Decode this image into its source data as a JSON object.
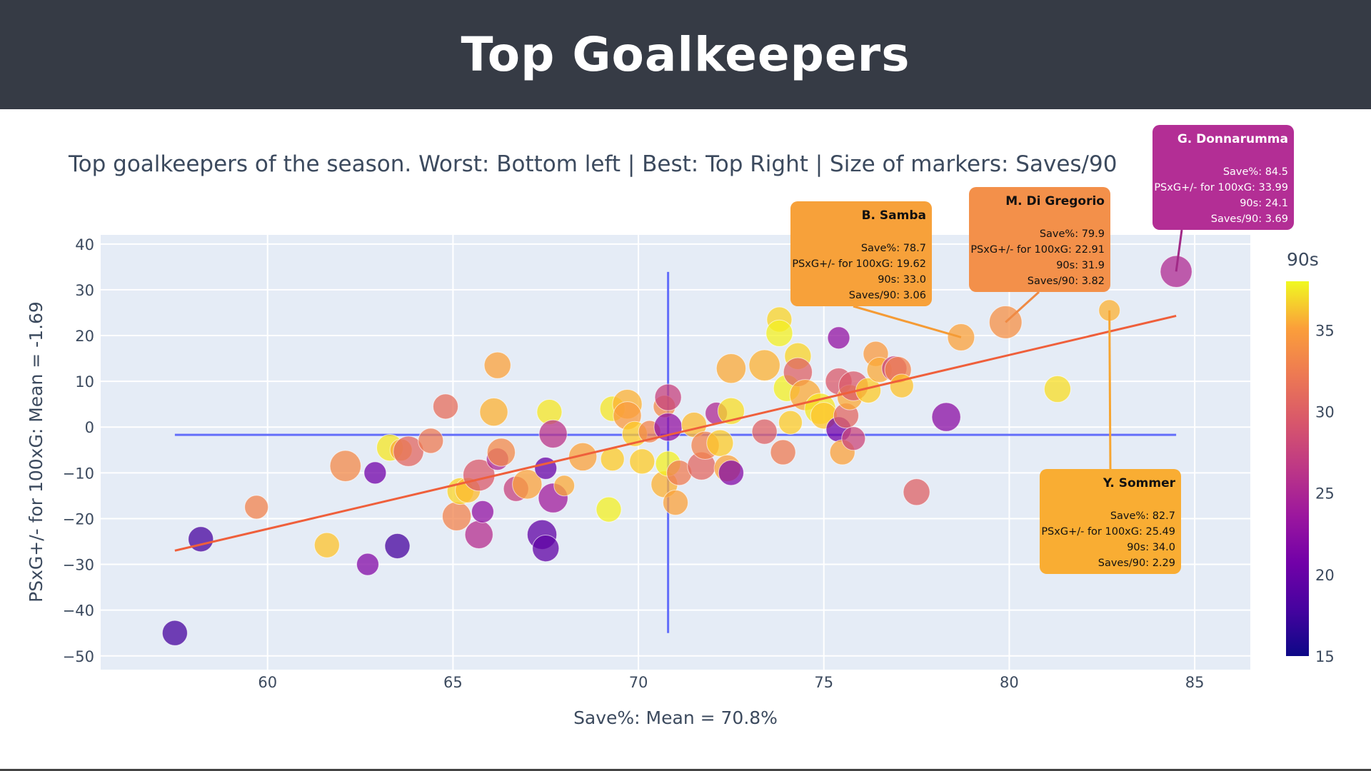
{
  "header": {
    "title": "Top Goalkeepers"
  },
  "chart_data": {
    "type": "scatter",
    "subtitle": "Top goalkeepers of the season. Worst: Bottom left | Best: Top Right | Size of markers: Saves/90",
    "xlabel": "Save%: Mean = 70.8%",
    "ylabel": "PSxG+/- for 100xG: Mean = -1.69",
    "xlim": [
      55.5,
      86.5
    ],
    "ylim": [
      -53,
      42
    ],
    "xticks": [
      60,
      65,
      70,
      75,
      80,
      85
    ],
    "yticks": [
      40,
      30,
      20,
      10,
      0,
      -10,
      -20,
      -30,
      -40,
      -50
    ],
    "mean_x": 70.8,
    "mean_y": -1.69,
    "trendline": {
      "x": [
        57.5,
        84.5
      ],
      "y": [
        -27,
        24.3
      ],
      "color": "#ef5f3b"
    },
    "mean_line_color": "#636efa",
    "grid": true,
    "colorbar": {
      "title": "90s",
      "min": 15,
      "max": 38,
      "ticks": [
        15,
        20,
        25,
        30,
        35
      ]
    },
    "points": [
      {
        "x": 84.5,
        "y": 33.99,
        "n90": 24.1,
        "s90": 3.69
      },
      {
        "x": 79.9,
        "y": 22.91,
        "n90": 31.9,
        "s90": 3.82
      },
      {
        "x": 78.7,
        "y": 19.62,
        "n90": 33.0,
        "s90": 3.06
      },
      {
        "x": 82.7,
        "y": 25.49,
        "n90": 34.0,
        "s90": 2.29
      },
      {
        "x": 81.3,
        "y": 8.3,
        "n90": 36.5,
        "s90": 3.0
      },
      {
        "x": 78.3,
        "y": 2.2,
        "n90": 21.5,
        "s90": 3.3
      },
      {
        "x": 77.5,
        "y": -14.2,
        "n90": 28.5,
        "s90": 3.0
      },
      {
        "x": 57.5,
        "y": -45.0,
        "n90": 17.5,
        "s90": 2.8
      },
      {
        "x": 58.2,
        "y": -24.5,
        "n90": 17.5,
        "s90": 2.8
      },
      {
        "x": 59.7,
        "y": -17.5,
        "n90": 31.0,
        "s90": 2.6
      },
      {
        "x": 61.6,
        "y": -25.8,
        "n90": 35.0,
        "s90": 2.8
      },
      {
        "x": 62.1,
        "y": -8.5,
        "n90": 31.5,
        "s90": 3.6
      },
      {
        "x": 62.7,
        "y": -30.0,
        "n90": 21.0,
        "s90": 2.4
      },
      {
        "x": 62.9,
        "y": -10.0,
        "n90": 20.0,
        "s90": 2.4
      },
      {
        "x": 63.5,
        "y": -26.0,
        "n90": 17.5,
        "s90": 2.8
      },
      {
        "x": 63.3,
        "y": -4.5,
        "n90": 37.0,
        "s90": 3.0
      },
      {
        "x": 63.6,
        "y": -5.0,
        "n90": 33.5,
        "s90": 2.4
      },
      {
        "x": 63.8,
        "y": -5.3,
        "n90": 29.0,
        "s90": 3.5
      },
      {
        "x": 64.4,
        "y": -3.0,
        "n90": 30.5,
        "s90": 2.8
      },
      {
        "x": 64.8,
        "y": 4.5,
        "n90": 29.5,
        "s90": 2.8
      },
      {
        "x": 65.1,
        "y": -19.5,
        "n90": 31.0,
        "s90": 3.3
      },
      {
        "x": 65.2,
        "y": -14.0,
        "n90": 36.0,
        "s90": 3.0
      },
      {
        "x": 65.4,
        "y": -13.8,
        "n90": 34.5,
        "s90": 2.8
      },
      {
        "x": 65.7,
        "y": -10.5,
        "n90": 28.0,
        "s90": 3.7
      },
      {
        "x": 65.7,
        "y": -23.5,
        "n90": 24.5,
        "s90": 3.2
      },
      {
        "x": 65.8,
        "y": -18.5,
        "n90": 22.0,
        "s90": 2.4
      },
      {
        "x": 66.1,
        "y": 3.3,
        "n90": 34.0,
        "s90": 3.2
      },
      {
        "x": 66.2,
        "y": 13.5,
        "n90": 33.0,
        "s90": 3.0
      },
      {
        "x": 66.2,
        "y": -7.0,
        "n90": 24.0,
        "s90": 2.4
      },
      {
        "x": 66.3,
        "y": -5.5,
        "n90": 31.5,
        "s90": 3.2
      },
      {
        "x": 66.7,
        "y": -13.5,
        "n90": 26.0,
        "s90": 2.8
      },
      {
        "x": 67.0,
        "y": -12.5,
        "n90": 33.0,
        "s90": 3.4
      },
      {
        "x": 67.4,
        "y": -23.5,
        "n90": 19.0,
        "s90": 3.4
      },
      {
        "x": 67.5,
        "y": -26.5,
        "n90": 19.0,
        "s90": 3.0
      },
      {
        "x": 67.5,
        "y": -9.0,
        "n90": 19.5,
        "s90": 2.4
      },
      {
        "x": 67.6,
        "y": 3.3,
        "n90": 37.0,
        "s90": 2.8
      },
      {
        "x": 67.7,
        "y": -1.5,
        "n90": 25.0,
        "s90": 3.2
      },
      {
        "x": 67.7,
        "y": -15.5,
        "n90": 23.0,
        "s90": 3.4
      },
      {
        "x": 68.0,
        "y": -12.8,
        "n90": 33.5,
        "s90": 2.2
      },
      {
        "x": 68.5,
        "y": -6.5,
        "n90": 33.0,
        "s90": 3.2
      },
      {
        "x": 69.2,
        "y": -18.0,
        "n90": 37.5,
        "s90": 2.8
      },
      {
        "x": 69.3,
        "y": -7.0,
        "n90": 35.5,
        "s90": 2.6
      },
      {
        "x": 69.3,
        "y": 4.0,
        "n90": 37.0,
        "s90": 2.8
      },
      {
        "x": 69.7,
        "y": 5.0,
        "n90": 34.0,
        "s90": 3.4
      },
      {
        "x": 69.7,
        "y": 2.5,
        "n90": 32.5,
        "s90": 3.2
      },
      {
        "x": 69.9,
        "y": -1.5,
        "n90": 35.5,
        "s90": 2.8
      },
      {
        "x": 70.1,
        "y": -7.5,
        "n90": 35.5,
        "s90": 2.8
      },
      {
        "x": 70.3,
        "y": -1.0,
        "n90": 31.0,
        "s90": 2.4
      },
      {
        "x": 70.7,
        "y": -12.5,
        "n90": 34.0,
        "s90": 3.0
      },
      {
        "x": 70.7,
        "y": 4.5,
        "n90": 31.5,
        "s90": 2.4
      },
      {
        "x": 70.8,
        "y": 6.5,
        "n90": 26.0,
        "s90": 3.0
      },
      {
        "x": 70.8,
        "y": 0.0,
        "n90": 22.0,
        "s90": 3.2
      },
      {
        "x": 70.8,
        "y": -8.0,
        "n90": 37.5,
        "s90": 2.8
      },
      {
        "x": 71.0,
        "y": -16.5,
        "n90": 33.0,
        "s90": 2.8
      },
      {
        "x": 71.1,
        "y": -10.0,
        "n90": 30.5,
        "s90": 2.8
      },
      {
        "x": 71.5,
        "y": 0.5,
        "n90": 34.5,
        "s90": 2.8
      },
      {
        "x": 71.7,
        "y": -8.5,
        "n90": 29.0,
        "s90": 3.2
      },
      {
        "x": 71.8,
        "y": -4.0,
        "n90": 31.0,
        "s90": 3.2
      },
      {
        "x": 72.1,
        "y": 3.0,
        "n90": 24.0,
        "s90": 2.4
      },
      {
        "x": 72.2,
        "y": -3.5,
        "n90": 35.5,
        "s90": 3.0
      },
      {
        "x": 72.4,
        "y": -9.0,
        "n90": 33.0,
        "s90": 3.0
      },
      {
        "x": 72.5,
        "y": -10.0,
        "n90": 21.0,
        "s90": 2.8
      },
      {
        "x": 72.5,
        "y": 3.5,
        "n90": 36.5,
        "s90": 3.0
      },
      {
        "x": 72.5,
        "y": 12.8,
        "n90": 33.5,
        "s90": 3.4
      },
      {
        "x": 73.4,
        "y": 13.5,
        "n90": 34.0,
        "s90": 3.6
      },
      {
        "x": 73.4,
        "y": -1.0,
        "n90": 28.5,
        "s90": 2.8
      },
      {
        "x": 73.8,
        "y": 23.5,
        "n90": 36.0,
        "s90": 2.8
      },
      {
        "x": 73.8,
        "y": 20.5,
        "n90": 37.5,
        "s90": 3.0
      },
      {
        "x": 73.9,
        "y": -5.5,
        "n90": 30.5,
        "s90": 2.8
      },
      {
        "x": 74.0,
        "y": 8.5,
        "n90": 37.5,
        "s90": 3.0
      },
      {
        "x": 74.1,
        "y": 1.0,
        "n90": 35.5,
        "s90": 2.6
      },
      {
        "x": 74.3,
        "y": 15.5,
        "n90": 36.0,
        "s90": 3.0
      },
      {
        "x": 74.3,
        "y": 12.0,
        "n90": 28.5,
        "s90": 3.3
      },
      {
        "x": 74.5,
        "y": 7.0,
        "n90": 33.5,
        "s90": 3.6
      },
      {
        "x": 74.9,
        "y": 4.0,
        "n90": 37.0,
        "s90": 3.6
      },
      {
        "x": 75.0,
        "y": 2.5,
        "n90": 35.0,
        "s90": 3.0
      },
      {
        "x": 75.4,
        "y": 19.5,
        "n90": 22.0,
        "s90": 2.4
      },
      {
        "x": 75.4,
        "y": 10.0,
        "n90": 28.0,
        "s90": 3.0
      },
      {
        "x": 75.4,
        "y": -0.5,
        "n90": 20.0,
        "s90": 2.8
      },
      {
        "x": 75.5,
        "y": -5.5,
        "n90": 33.0,
        "s90": 2.8
      },
      {
        "x": 75.6,
        "y": 2.5,
        "n90": 29.0,
        "s90": 2.8
      },
      {
        "x": 75.7,
        "y": 6.5,
        "n90": 33.5,
        "s90": 2.8
      },
      {
        "x": 75.8,
        "y": 9.0,
        "n90": 28.0,
        "s90": 3.4
      },
      {
        "x": 75.8,
        "y": -2.5,
        "n90": 26.5,
        "s90": 2.6
      },
      {
        "x": 76.2,
        "y": 8.0,
        "n90": 35.5,
        "s90": 2.8
      },
      {
        "x": 76.4,
        "y": 16.0,
        "n90": 32.5,
        "s90": 2.8
      },
      {
        "x": 76.5,
        "y": 12.5,
        "n90": 33.5,
        "s90": 2.8
      },
      {
        "x": 76.9,
        "y": 12.8,
        "n90": 26.0,
        "s90": 2.8
      },
      {
        "x": 77.0,
        "y": 12.5,
        "n90": 31.0,
        "s90": 3.0
      },
      {
        "x": 77.1,
        "y": 9.0,
        "n90": 35.0,
        "s90": 2.6
      }
    ],
    "annotations": [
      {
        "name": "G. Donnarumma",
        "lines": [
          "Save%: 84.5",
          "PSxG+/- for 100xG: 33.99",
          "90s: 24.1",
          "Saves/90:   3.69"
        ],
        "bg": "#b32e95",
        "fg": "#ffffff",
        "x": 84.5,
        "y": 33.99,
        "line_color": "#a12a87"
      },
      {
        "name": "M. Di Gregorio",
        "lines": [
          "Save%: 79.9",
          "PSxG+/- for 100xG: 22.91",
          "90s: 31.9",
          "Saves/90:   3.82"
        ],
        "bg": "#f3904a",
        "fg": "#111111",
        "x": 79.9,
        "y": 22.91,
        "line_color": "#ef8a44"
      },
      {
        "name": "B. Samba",
        "lines": [
          "Save%: 78.7",
          "PSxG+/- for 100xG: 19.62",
          "90s: 33.0",
          "Saves/90:   3.06"
        ],
        "bg": "#f7a13a",
        "fg": "#111111",
        "x": 78.7,
        "y": 19.62,
        "line_color": "#f59b35"
      },
      {
        "name": "Y. Sommer",
        "lines": [
          "Save%: 82.7",
          "PSxG+/- for 100xG: 25.49",
          "90s: 34.0",
          "Saves/90:   2.29"
        ],
        "bg": "#f9ad33",
        "fg": "#111111",
        "x": 82.7,
        "y": 25.49,
        "line_color": "#f7a531"
      }
    ]
  }
}
